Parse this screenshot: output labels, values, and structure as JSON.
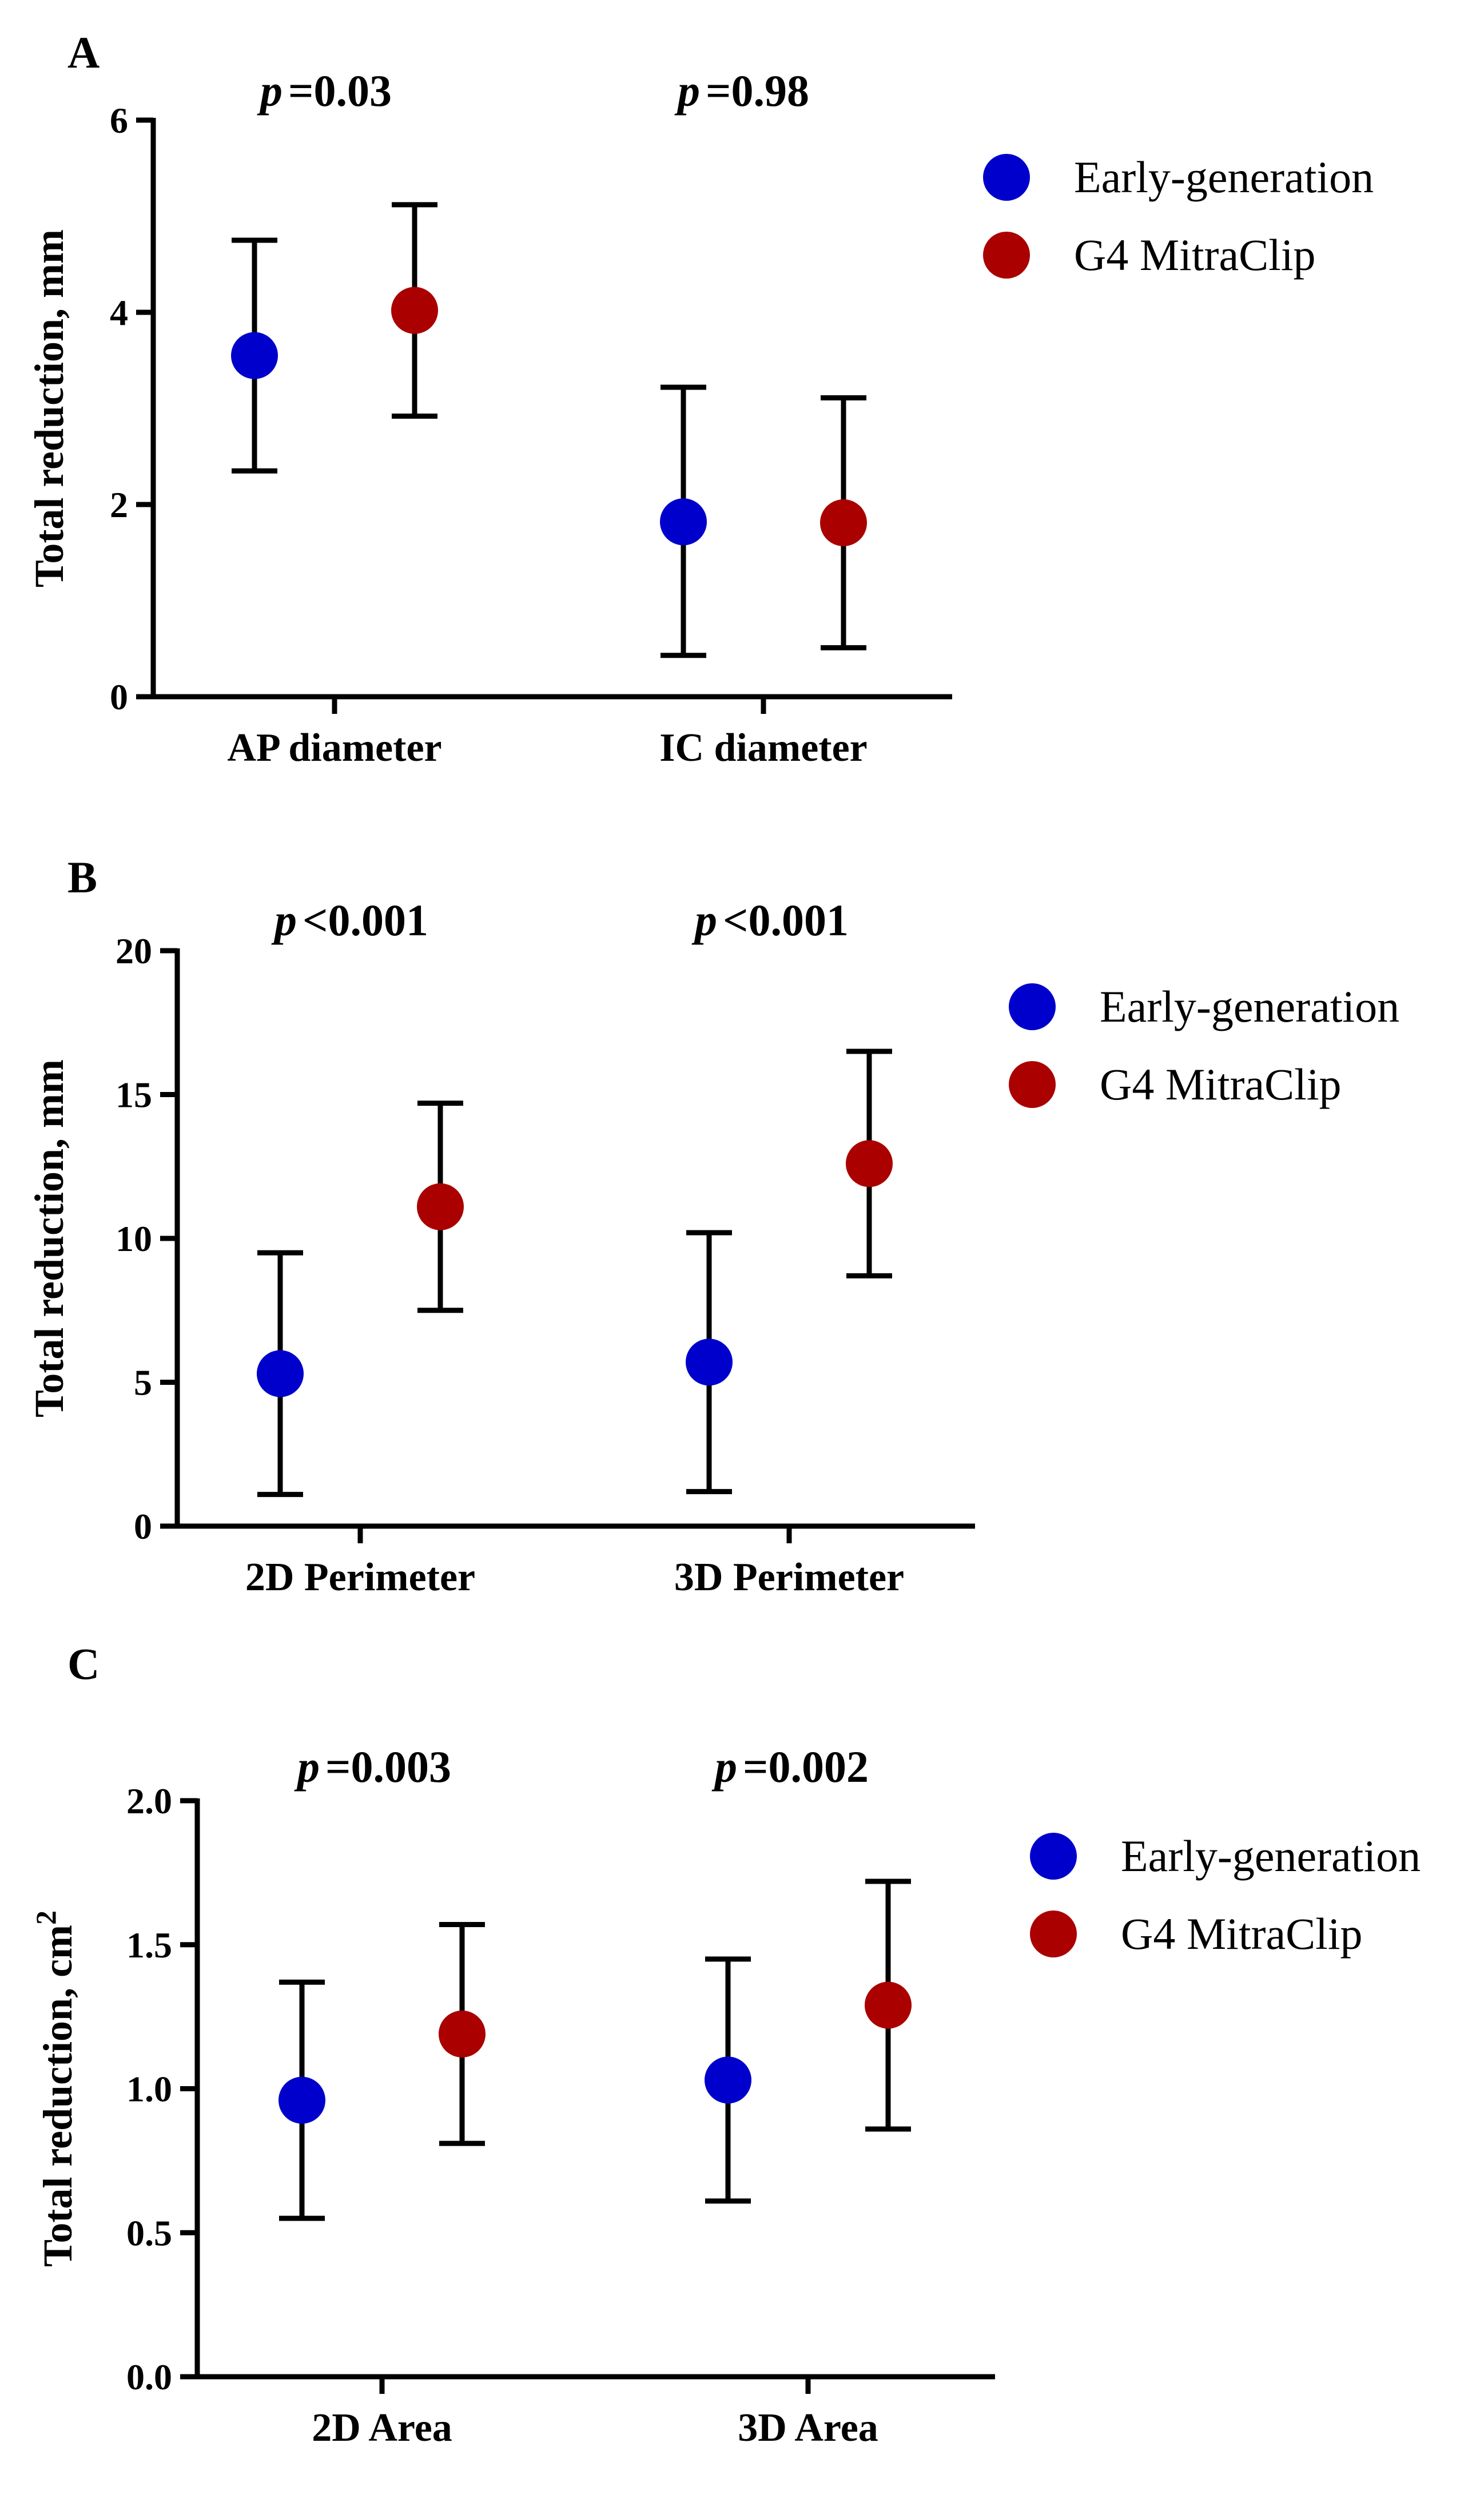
{
  "chart_data": [
    {
      "type": "scatter",
      "panel_label": "A",
      "ylabel": "Total reduction, mm",
      "ylabel_superscript": "",
      "ylim": [
        0,
        6
      ],
      "yticks": [
        0,
        2,
        4,
        6
      ],
      "ytick_labels": [
        "0",
        "2",
        "4",
        "6"
      ],
      "categories": [
        "AP diameter",
        "IC diameter"
      ],
      "p_values": [
        "=0.03",
        "=0.98"
      ],
      "p_symbol": "p",
      "series": [
        {
          "name": "Early-generation",
          "color": "#0000CC",
          "values": [
            3.55,
            1.82
          ],
          "lower": [
            2.35,
            0.43
          ],
          "upper": [
            4.75,
            3.22
          ]
        },
        {
          "name": "G4 MitraClip",
          "color": "#AA0000",
          "values": [
            4.02,
            1.81
          ],
          "lower": [
            2.92,
            0.51
          ],
          "upper": [
            5.12,
            3.11
          ]
        }
      ],
      "legend": [
        "Early-generation",
        "G4 MitraClip"
      ],
      "legend_position": "top-right"
    },
    {
      "type": "scatter",
      "panel_label": "B",
      "ylabel": "Total reduction, mm",
      "ylabel_superscript": "",
      "ylim": [
        0,
        20
      ],
      "yticks": [
        0,
        5,
        10,
        15,
        20
      ],
      "ytick_labels": [
        "0",
        "5",
        "10",
        "15",
        "20"
      ],
      "categories": [
        "2D Perimeter",
        "3D Perimeter"
      ],
      "p_values": [
        "<0.001",
        "<0.001"
      ],
      "p_symbol": "p",
      "series": [
        {
          "name": "Early-generation",
          "color": "#0000CC",
          "values": [
            5.3,
            5.7
          ],
          "lower": [
            1.1,
            1.2
          ],
          "upper": [
            9.5,
            10.2
          ]
        },
        {
          "name": "G4 MitraClip",
          "color": "#AA0000",
          "values": [
            11.1,
            12.6
          ],
          "lower": [
            7.5,
            8.7
          ],
          "upper": [
            14.7,
            16.5
          ]
        }
      ],
      "legend": [
        "Early-generation",
        "G4 MitraClip"
      ],
      "legend_position": "top-right"
    },
    {
      "type": "scatter",
      "panel_label": "C",
      "ylabel": "Total reduction, cm",
      "ylabel_superscript": "2",
      "ylim": [
        0,
        2
      ],
      "yticks": [
        0,
        0.5,
        1,
        1.5,
        2
      ],
      "ytick_labels": [
        "0.0",
        "0.5",
        "1.0",
        "1.5",
        "2.0"
      ],
      "categories": [
        "2D Area",
        "3D Area"
      ],
      "p_values": [
        "=0.003",
        "=0.002"
      ],
      "p_symbol": "p",
      "series": [
        {
          "name": "Early-generation",
          "color": "#0000CC",
          "values": [
            0.96,
            1.03
          ],
          "lower": [
            0.55,
            0.61
          ],
          "upper": [
            1.37,
            1.45
          ]
        },
        {
          "name": "G4 MitraClip",
          "color": "#AA0000",
          "values": [
            1.19,
            1.29
          ],
          "lower": [
            0.81,
            0.86
          ],
          "upper": [
            1.57,
            1.72
          ]
        }
      ],
      "legend": [
        "Early-generation",
        "G4 MitraClip"
      ],
      "legend_position": "top-right"
    }
  ]
}
